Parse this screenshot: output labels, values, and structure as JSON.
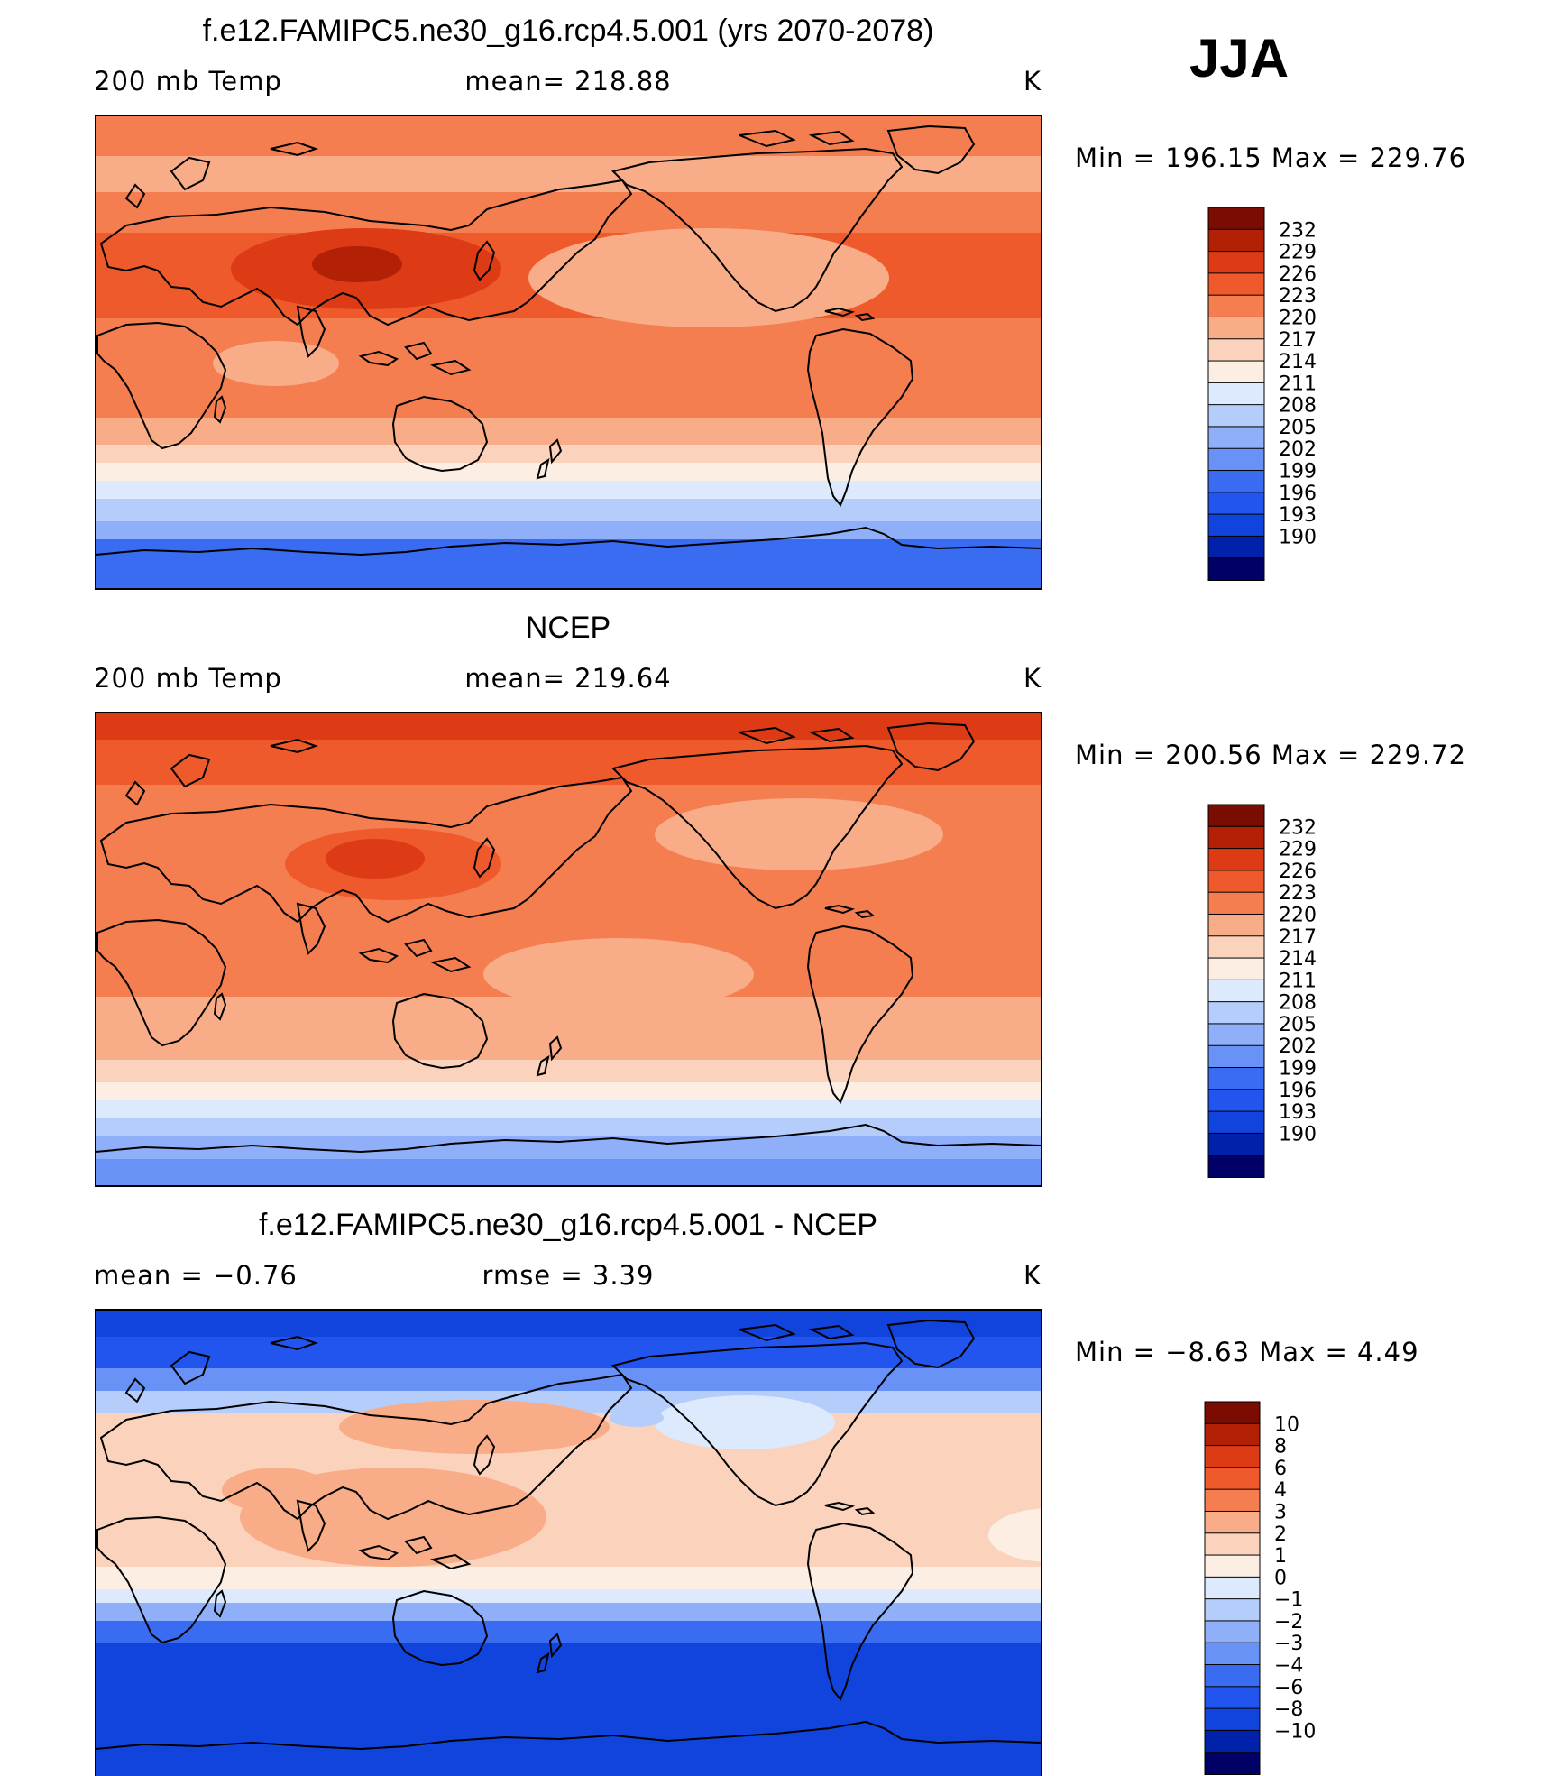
{
  "season": "JJA",
  "units_label": "K",
  "colors": {
    "abs": [
      "#000066",
      "#0022aa",
      "#1144dd",
      "#2255ee",
      "#3a6cf2",
      "#6892f5",
      "#8fb0f8",
      "#b5cdfa",
      "#dde9fc",
      "#fdeee4",
      "#fbd3bd",
      "#f8ac88",
      "#f47e50",
      "#ef5a2c",
      "#dc3b15",
      "#b22006",
      "#7a0c02"
    ],
    "diff": [
      "#000066",
      "#0022aa",
      "#1144dd",
      "#2255ee",
      "#3a6cf2",
      "#6892f5",
      "#8fb0f8",
      "#b5cdfa",
      "#dde9fc",
      "#fdeee4",
      "#fbd3bd",
      "#f8ac88",
      "#f47e50",
      "#ef5a2c",
      "#dc3b15",
      "#b22006",
      "#7a0c02"
    ]
  },
  "panels": [
    {
      "title": "f.e12.FAMIPC5.ne30_g16.rcp4.5.001 (yrs 2070-2078)",
      "left_text": "200 mb Temp",
      "center_text": "mean= 218.88",
      "right_text": "K",
      "minmax": "Min = 196.15 Max = 229.76",
      "colorbar_labels": [
        "232",
        "229",
        "226",
        "223",
        "220",
        "217",
        "214",
        "211",
        "208",
        "205",
        "202",
        "199",
        "196",
        "193",
        "190"
      ]
    },
    {
      "title": "NCEP",
      "left_text": "200 mb Temp",
      "center_text": "mean= 219.64",
      "right_text": "K",
      "minmax": "Min = 200.56 Max = 229.72",
      "colorbar_labels": [
        "232",
        "229",
        "226",
        "223",
        "220",
        "217",
        "214",
        "211",
        "208",
        "205",
        "202",
        "199",
        "196",
        "193",
        "190"
      ]
    },
    {
      "title": "f.e12.FAMIPC5.ne30_g16.rcp4.5.001 - NCEP",
      "left_text": "mean =   −0.76",
      "center_text": "rmse =    3.39",
      "right_text": "K",
      "minmax": "Min =   −8.63 Max =    4.49",
      "colorbar_labels": [
        "10",
        "8",
        "6",
        "4",
        "3",
        "2",
        "1",
        "0",
        "−1",
        "−2",
        "−3",
        "−4",
        "−6",
        "−8",
        "−10"
      ]
    }
  ]
}
